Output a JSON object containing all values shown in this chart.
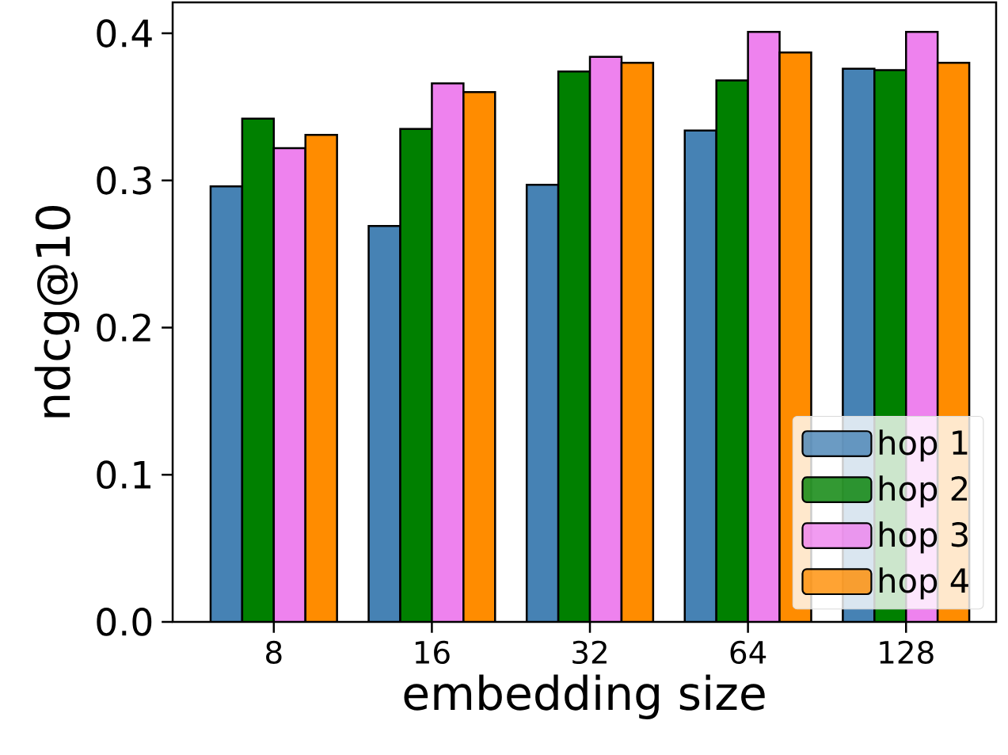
{
  "chart_data": {
    "type": "bar",
    "xlabel": "embedding size",
    "ylabel": "ndcg@10",
    "categories": [
      "8",
      "16",
      "32",
      "64",
      "128"
    ],
    "series": [
      {
        "name": "hop 1",
        "color": "#4682b4",
        "values": [
          0.296,
          0.269,
          0.297,
          0.334,
          0.376
        ]
      },
      {
        "name": "hop 2",
        "color": "#008000",
        "values": [
          0.342,
          0.335,
          0.374,
          0.368,
          0.375
        ]
      },
      {
        "name": "hop 3",
        "color": "#ee82ee",
        "values": [
          0.322,
          0.366,
          0.384,
          0.401,
          0.401
        ]
      },
      {
        "name": "hop 4",
        "color": "#ff8c00",
        "values": [
          0.331,
          0.36,
          0.38,
          0.387,
          0.38
        ]
      }
    ],
    "ylim": [
      0,
      0.421
    ],
    "yticks": [
      {
        "value": 0,
        "label": "0.0"
      },
      {
        "value": 0.1,
        "label": "0.1"
      },
      {
        "value": 0.2,
        "label": "0.2"
      },
      {
        "value": 0.3,
        "label": "0.3"
      },
      {
        "value": 0.4,
        "label": "0.4"
      }
    ],
    "grid": false,
    "legend": "bottom right"
  }
}
